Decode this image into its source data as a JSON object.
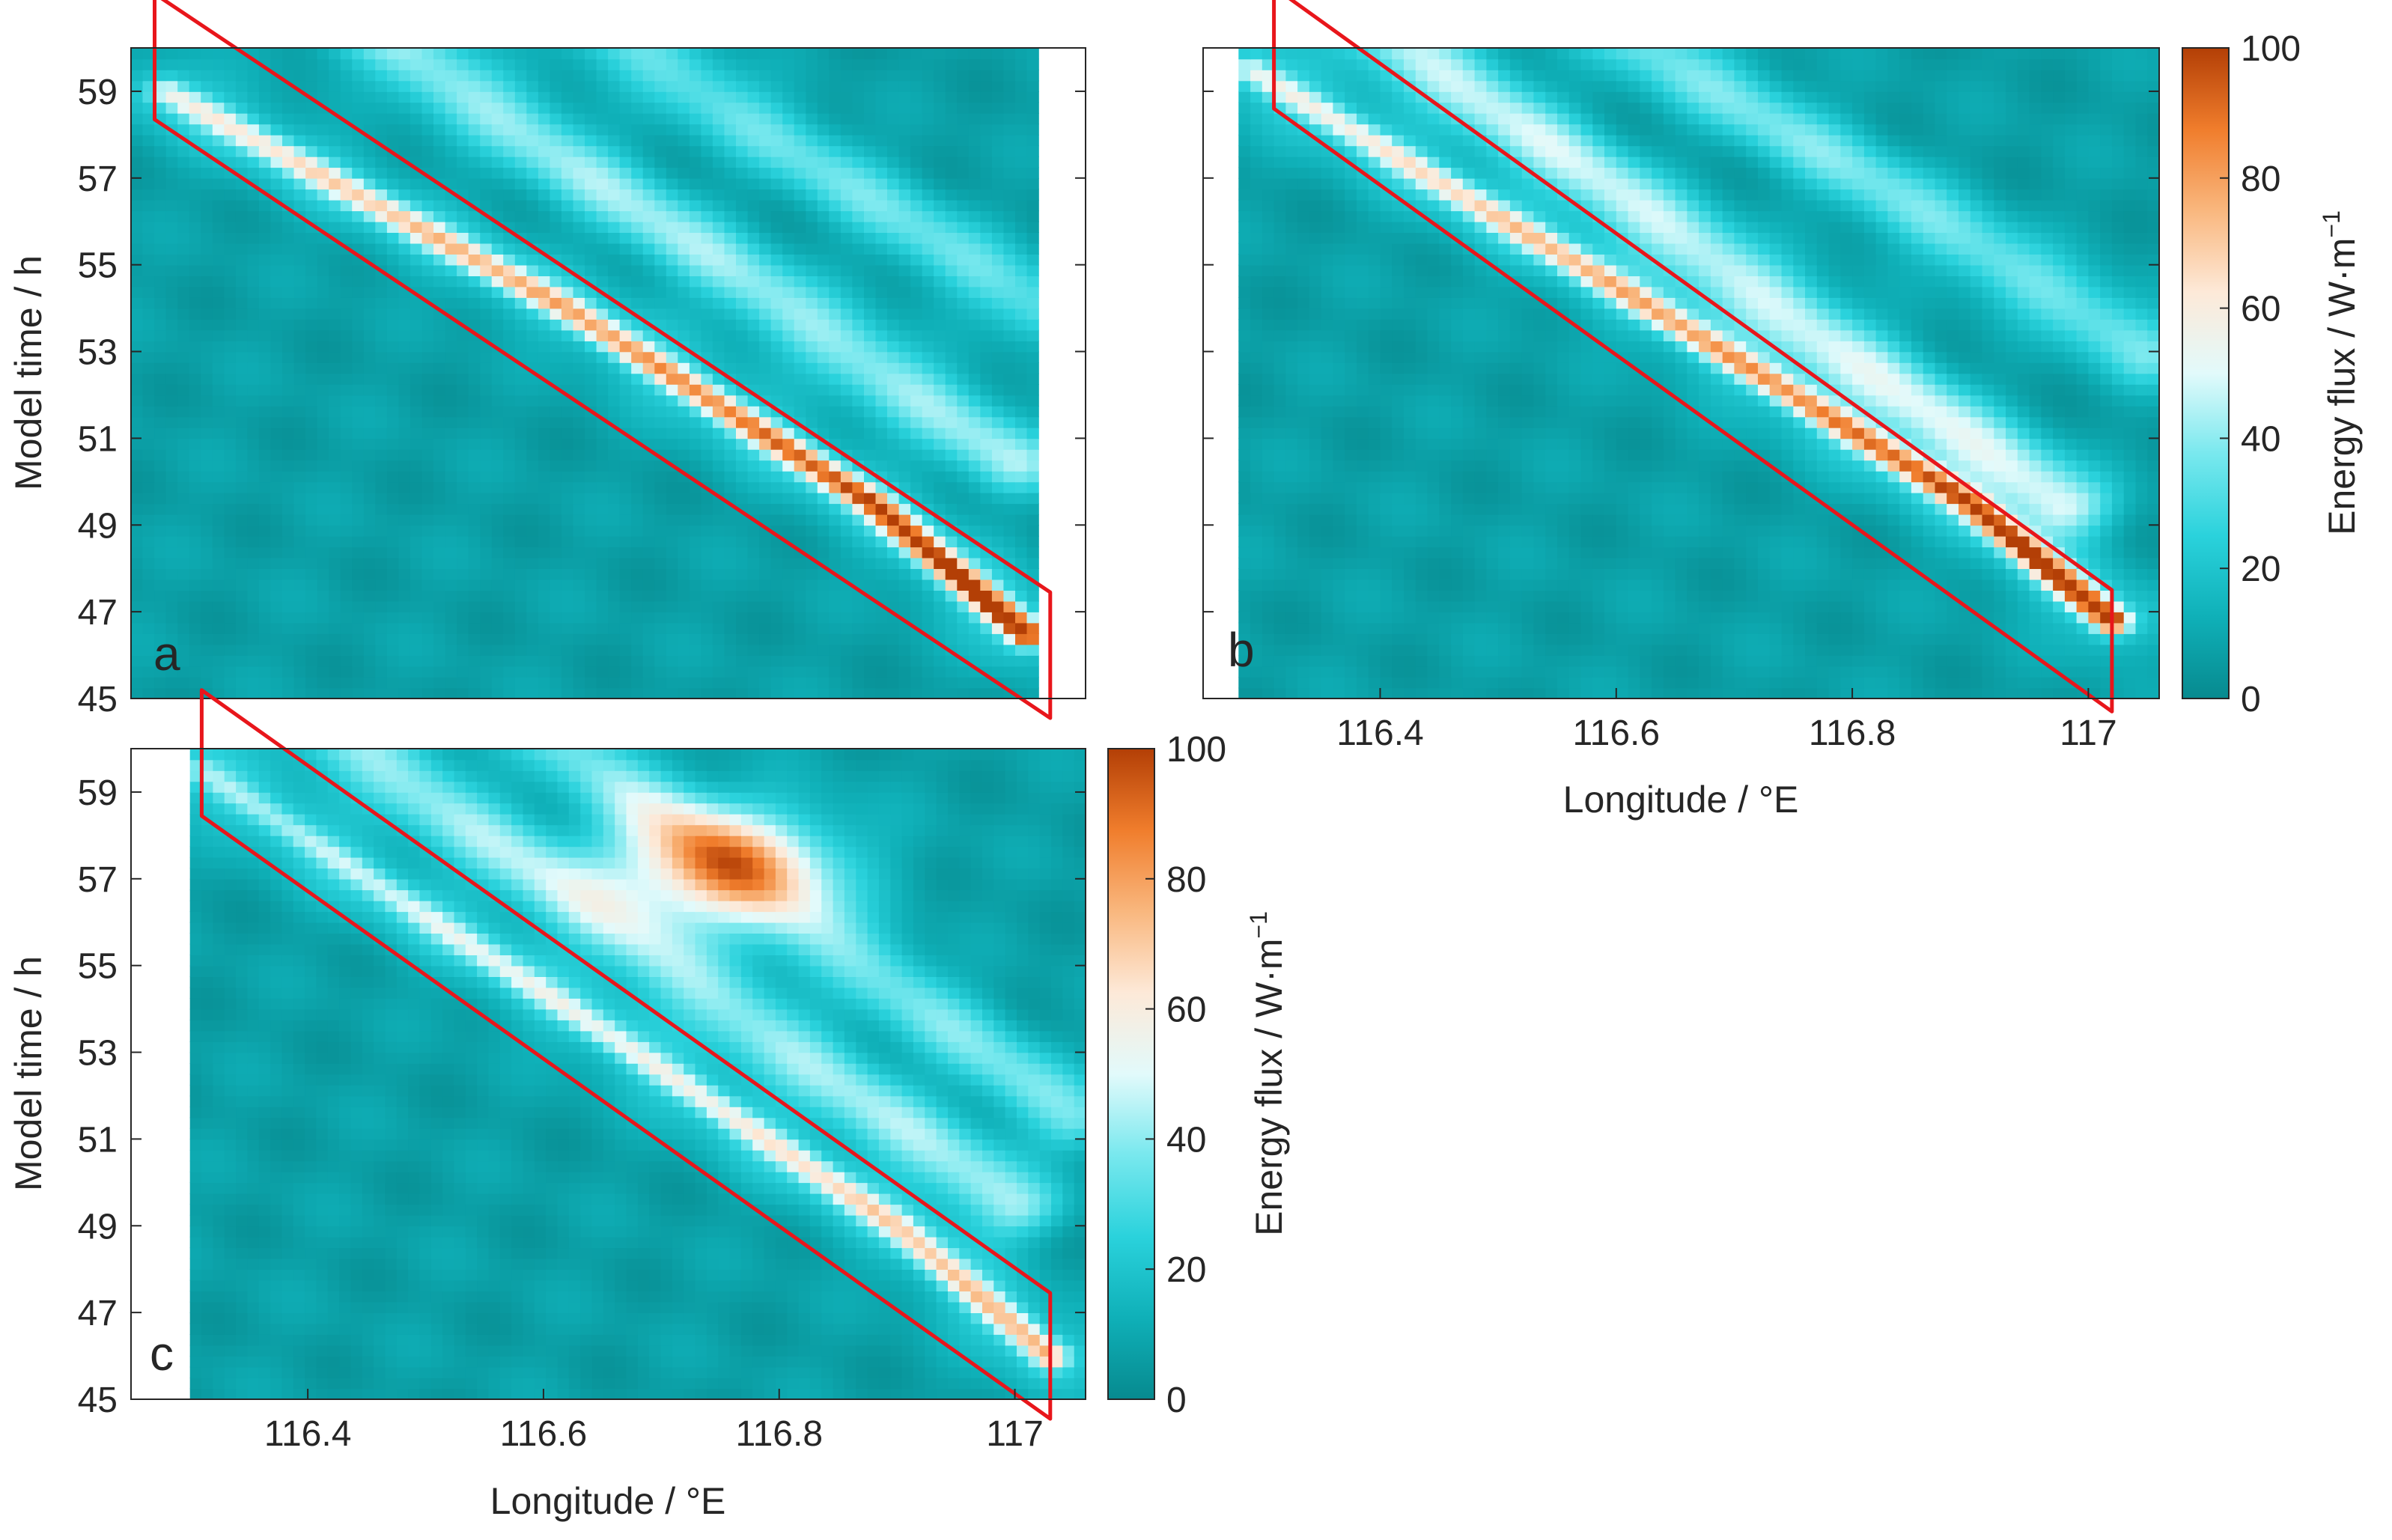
{
  "figure": {
    "colormap": {
      "stops": [
        "#078a8f",
        "#0fb0b8",
        "#2ad2dc",
        "#78e8ee",
        "#e2fafb",
        "#fde9d8",
        "#f9b77e",
        "#f07d2c",
        "#b33f06"
      ],
      "ticks": [
        "0",
        "20",
        "40",
        "60",
        "80",
        "100"
      ],
      "label": "Energy flux / W·m",
      "label_sup": "−1"
    },
    "highlight_color": "#e8161b"
  },
  "chart_data": [
    {
      "panel": "a",
      "type": "heatmap",
      "xlabel": "",
      "ylabel": "Model time / h",
      "x_ticklabels": [],
      "y_ticks": [
        45,
        47,
        49,
        51,
        53,
        55,
        57,
        59
      ],
      "y_ticklabels": [
        "45",
        "47",
        "49",
        "51",
        "53",
        "55",
        "57",
        "59"
      ],
      "xlim": [
        116.25,
        117.06
      ],
      "ylim": [
        45,
        60
      ],
      "data_xlim": [
        116.25,
        117.02
      ],
      "value_range": [
        0,
        100
      ],
      "ridge": {
        "x": [
          116.28,
          116.62,
          116.88,
          117.01
        ],
        "t": [
          59.0,
          54.0,
          49.5,
          46.5
        ],
        "peak": 95
      },
      "secondary_bands": [
        {
          "x": [
            116.45,
            117.0
          ],
          "t": [
            60.5,
            50.5
          ],
          "peak": 35
        },
        {
          "x": [
            116.65,
            117.02
          ],
          "t": [
            60.5,
            54.0
          ],
          "peak": 28
        }
      ],
      "highlight": {
        "x": [
          116.27,
          117.03
        ],
        "t": [
          59.8,
          46.0
        ],
        "halfwidth_h": 1.45
      }
    },
    {
      "panel": "b",
      "type": "heatmap",
      "xlabel": "Longitude / °E",
      "ylabel": "",
      "x_ticks": [
        116.4,
        116.6,
        116.8,
        117.0
      ],
      "x_ticklabels": [
        "116.4",
        "116.6",
        "116.8",
        "117"
      ],
      "y_ticks": [
        45,
        47,
        49,
        51,
        53,
        55,
        57,
        59
      ],
      "y_ticklabels": [],
      "xlim": [
        116.25,
        117.06
      ],
      "ylim": [
        45,
        60
      ],
      "data_xlim": [
        116.28,
        117.06
      ],
      "value_range": [
        0,
        100
      ],
      "colorbar": true,
      "ridge": {
        "x": [
          116.29,
          116.6,
          116.9,
          117.02
        ],
        "t": [
          59.5,
          54.5,
          49.5,
          46.8
        ],
        "peak": 90
      },
      "secondary_bands": [
        {
          "x": [
            116.4,
            116.98
          ],
          "t": [
            60.5,
            49.5
          ],
          "peak": 40
        },
        {
          "x": [
            116.6,
            117.05
          ],
          "t": [
            60.5,
            53.0
          ],
          "peak": 30
        }
      ],
      "highlight": {
        "x": [
          116.31,
          117.02
        ],
        "t": [
          60.0,
          46.1
        ],
        "halfwidth_h": 1.4
      }
    },
    {
      "panel": "c",
      "type": "heatmap",
      "xlabel": "Longitude / °E",
      "ylabel": "Model time / h",
      "x_ticks": [
        116.4,
        116.6,
        116.8,
        117.0
      ],
      "x_ticklabels": [
        "116.4",
        "116.6",
        "116.8",
        "117"
      ],
      "y_ticks": [
        45,
        47,
        49,
        51,
        53,
        55,
        57,
        59
      ],
      "y_ticklabels": [
        "45",
        "47",
        "49",
        "51",
        "53",
        "55",
        "57",
        "59"
      ],
      "xlim": [
        116.25,
        117.06
      ],
      "ylim": [
        45,
        60
      ],
      "data_xlim": [
        116.3,
        117.06
      ],
      "value_range": [
        0,
        100
      ],
      "colorbar": true,
      "ridge": {
        "x": [
          116.31,
          116.65,
          116.9,
          117.03
        ],
        "t": [
          59.5,
          53.5,
          49.0,
          46.0
        ],
        "peak": 55
      },
      "secondary_bands": [
        {
          "x": [
            116.42,
            117.0
          ],
          "t": [
            60.5,
            49.5
          ],
          "peak": 35
        },
        {
          "x": [
            116.6,
            117.05
          ],
          "t": [
            60.5,
            51.5
          ],
          "peak": 30
        }
      ],
      "blobs": [
        {
          "x": 116.75,
          "t": 57.3,
          "sx": 0.1,
          "st": 1.4,
          "peak": 60
        }
      ],
      "highlight": {
        "x": [
          116.31,
          117.03
        ],
        "t": [
          59.9,
          46.0
        ],
        "halfwidth_h": 1.45
      }
    }
  ]
}
